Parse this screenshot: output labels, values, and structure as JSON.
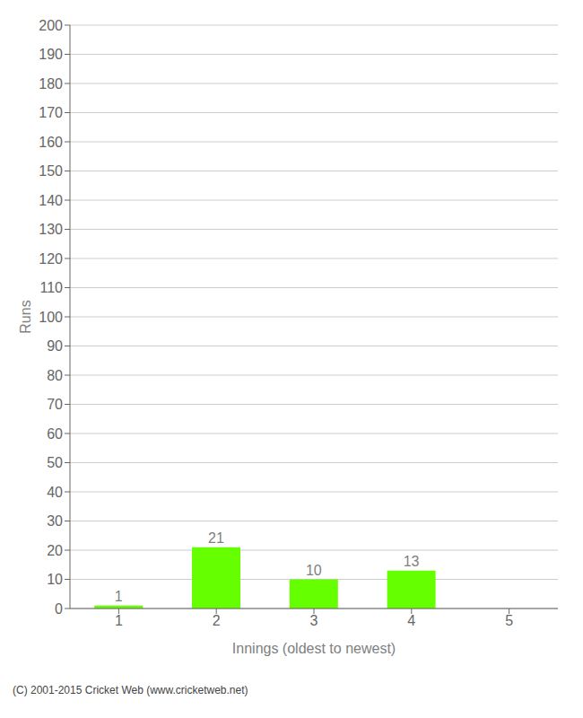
{
  "chart_data": {
    "type": "bar",
    "categories": [
      "1",
      "2",
      "3",
      "4",
      "5"
    ],
    "values": [
      1,
      21,
      10,
      13,
      0
    ],
    "color": "#66ff00",
    "xlabel": "Innings (oldest to newest)",
    "ylabel": "Runs",
    "ylim": [
      0,
      200
    ],
    "yticks": [
      0,
      10,
      20,
      30,
      40,
      50,
      60,
      70,
      80,
      90,
      100,
      110,
      120,
      130,
      140,
      150,
      160,
      170,
      180,
      190,
      200
    ],
    "grid": true,
    "data_labels": true,
    "annotation": "(C) 2001-2015 Cricket Web (www.cricketweb.net)"
  }
}
